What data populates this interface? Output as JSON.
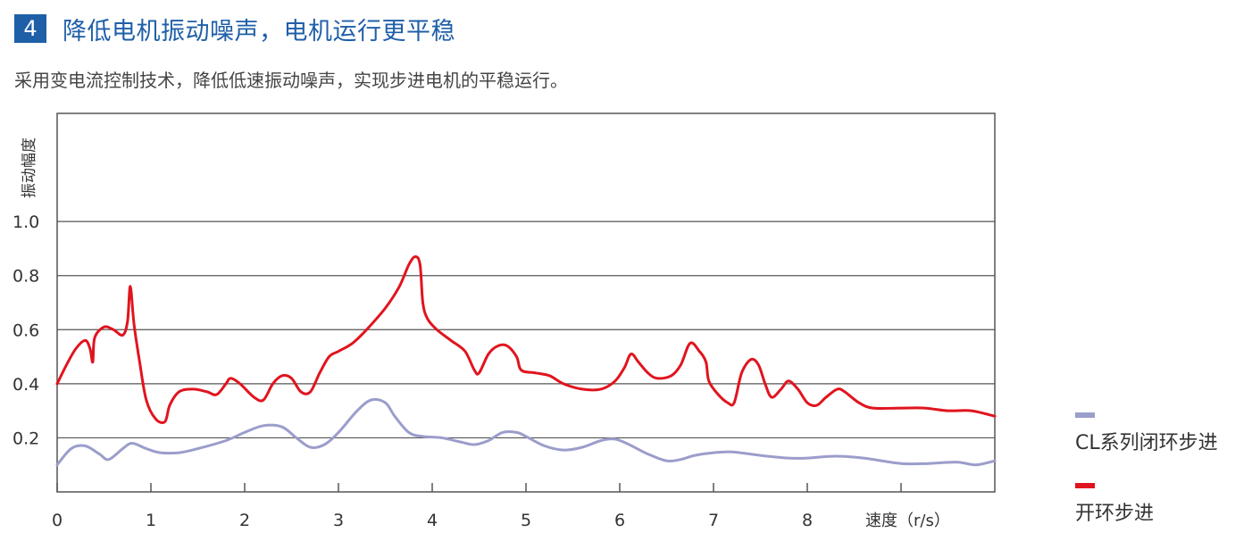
{
  "header": {
    "number": "4",
    "title": "降低电机振动噪声，电机运行更平稳",
    "subtitle": "采用变电流控制技术，降低低速振动噪声，实现步进电机的平稳运行。"
  },
  "colors": {
    "accent": "#1f5fa8",
    "open_loop": "#e1141e",
    "closed_loop": "#9b9dcb",
    "grid": "#555555"
  },
  "chart_data": {
    "type": "line",
    "ylabel": "振动幅度",
    "xlabel": "速度（r/s）",
    "xlim": [
      0,
      10
    ],
    "ylim": [
      0,
      1.4
    ],
    "x_ticks": [
      "0",
      "1",
      "2",
      "3",
      "4",
      "5",
      "6",
      "7",
      "8"
    ],
    "y_ticks": [
      "0.2",
      "0.4",
      "0.6",
      "0.8",
      "1.0"
    ],
    "series": [
      {
        "name": "CL系列闭环步进",
        "color": "#9b9dcb",
        "points": [
          [
            0,
            0.1
          ],
          [
            0.15,
            0.16
          ],
          [
            0.3,
            0.17
          ],
          [
            0.45,
            0.14
          ],
          [
            0.55,
            0.12
          ],
          [
            0.7,
            0.16
          ],
          [
            0.8,
            0.18
          ],
          [
            0.95,
            0.16
          ],
          [
            1.1,
            0.145
          ],
          [
            1.3,
            0.145
          ],
          [
            1.5,
            0.16
          ],
          [
            1.8,
            0.19
          ],
          [
            2.0,
            0.22
          ],
          [
            2.2,
            0.245
          ],
          [
            2.4,
            0.24
          ],
          [
            2.55,
            0.2
          ],
          [
            2.7,
            0.165
          ],
          [
            2.85,
            0.175
          ],
          [
            3.0,
            0.22
          ],
          [
            3.2,
            0.3
          ],
          [
            3.35,
            0.34
          ],
          [
            3.5,
            0.33
          ],
          [
            3.6,
            0.28
          ],
          [
            3.75,
            0.22
          ],
          [
            3.9,
            0.205
          ],
          [
            4.1,
            0.2
          ],
          [
            4.3,
            0.185
          ],
          [
            4.45,
            0.175
          ],
          [
            4.6,
            0.19
          ],
          [
            4.75,
            0.22
          ],
          [
            4.9,
            0.22
          ],
          [
            5.0,
            0.205
          ],
          [
            5.2,
            0.17
          ],
          [
            5.4,
            0.155
          ],
          [
            5.6,
            0.165
          ],
          [
            5.8,
            0.19
          ],
          [
            5.95,
            0.195
          ],
          [
            6.1,
            0.175
          ],
          [
            6.3,
            0.14
          ],
          [
            6.5,
            0.115
          ],
          [
            6.65,
            0.12
          ],
          [
            6.8,
            0.135
          ],
          [
            7.0,
            0.145
          ],
          [
            7.2,
            0.148
          ],
          [
            7.5,
            0.135
          ],
          [
            7.8,
            0.125
          ],
          [
            8.0,
            0.125
          ],
          [
            8.3,
            0.132
          ],
          [
            8.6,
            0.125
          ],
          [
            9.0,
            0.105
          ],
          [
            9.3,
            0.105
          ],
          [
            9.6,
            0.11
          ],
          [
            9.8,
            0.1
          ],
          [
            10.0,
            0.115
          ]
        ]
      },
      {
        "name": "开环步进",
        "color": "#e1141e",
        "points": [
          [
            0,
            0.4
          ],
          [
            0.1,
            0.47
          ],
          [
            0.2,
            0.53
          ],
          [
            0.3,
            0.56
          ],
          [
            0.35,
            0.53
          ],
          [
            0.38,
            0.48
          ],
          [
            0.4,
            0.57
          ],
          [
            0.5,
            0.61
          ],
          [
            0.6,
            0.6
          ],
          [
            0.7,
            0.58
          ],
          [
            0.75,
            0.63
          ],
          [
            0.78,
            0.76
          ],
          [
            0.82,
            0.62
          ],
          [
            0.88,
            0.48
          ],
          [
            0.95,
            0.34
          ],
          [
            1.05,
            0.27
          ],
          [
            1.15,
            0.26
          ],
          [
            1.2,
            0.32
          ],
          [
            1.3,
            0.37
          ],
          [
            1.45,
            0.38
          ],
          [
            1.6,
            0.37
          ],
          [
            1.7,
            0.36
          ],
          [
            1.8,
            0.4
          ],
          [
            1.85,
            0.42
          ],
          [
            1.95,
            0.4
          ],
          [
            2.1,
            0.35
          ],
          [
            2.2,
            0.34
          ],
          [
            2.3,
            0.4
          ],
          [
            2.4,
            0.43
          ],
          [
            2.5,
            0.42
          ],
          [
            2.6,
            0.37
          ],
          [
            2.7,
            0.37
          ],
          [
            2.8,
            0.44
          ],
          [
            2.9,
            0.5
          ],
          [
            3.0,
            0.52
          ],
          [
            3.15,
            0.55
          ],
          [
            3.3,
            0.6
          ],
          [
            3.5,
            0.68
          ],
          [
            3.65,
            0.76
          ],
          [
            3.75,
            0.84
          ],
          [
            3.82,
            0.87
          ],
          [
            3.87,
            0.84
          ],
          [
            3.9,
            0.7
          ],
          [
            3.95,
            0.64
          ],
          [
            4.05,
            0.6
          ],
          [
            4.2,
            0.56
          ],
          [
            4.35,
            0.52
          ],
          [
            4.45,
            0.45
          ],
          [
            4.5,
            0.44
          ],
          [
            4.6,
            0.51
          ],
          [
            4.7,
            0.54
          ],
          [
            4.8,
            0.54
          ],
          [
            4.9,
            0.5
          ],
          [
            4.95,
            0.45
          ],
          [
            5.1,
            0.44
          ],
          [
            5.25,
            0.43
          ],
          [
            5.4,
            0.4
          ],
          [
            5.6,
            0.38
          ],
          [
            5.8,
            0.38
          ],
          [
            5.95,
            0.41
          ],
          [
            6.05,
            0.46
          ],
          [
            6.12,
            0.51
          ],
          [
            6.2,
            0.48
          ],
          [
            6.3,
            0.44
          ],
          [
            6.4,
            0.42
          ],
          [
            6.55,
            0.43
          ],
          [
            6.65,
            0.47
          ],
          [
            6.75,
            0.55
          ],
          [
            6.85,
            0.52
          ],
          [
            6.92,
            0.48
          ],
          [
            6.95,
            0.41
          ],
          [
            7.05,
            0.36
          ],
          [
            7.15,
            0.33
          ],
          [
            7.22,
            0.33
          ],
          [
            7.3,
            0.44
          ],
          [
            7.4,
            0.49
          ],
          [
            7.48,
            0.47
          ],
          [
            7.55,
            0.4
          ],
          [
            7.62,
            0.35
          ],
          [
            7.72,
            0.38
          ],
          [
            7.8,
            0.41
          ],
          [
            7.9,
            0.38
          ],
          [
            8.0,
            0.33
          ],
          [
            8.1,
            0.32
          ],
          [
            8.2,
            0.35
          ],
          [
            8.32,
            0.38
          ],
          [
            8.4,
            0.37
          ],
          [
            8.55,
            0.33
          ],
          [
            8.7,
            0.31
          ],
          [
            9.0,
            0.31
          ],
          [
            9.25,
            0.31
          ],
          [
            9.5,
            0.3
          ],
          [
            9.75,
            0.3
          ],
          [
            10.0,
            0.28
          ]
        ]
      }
    ]
  }
}
